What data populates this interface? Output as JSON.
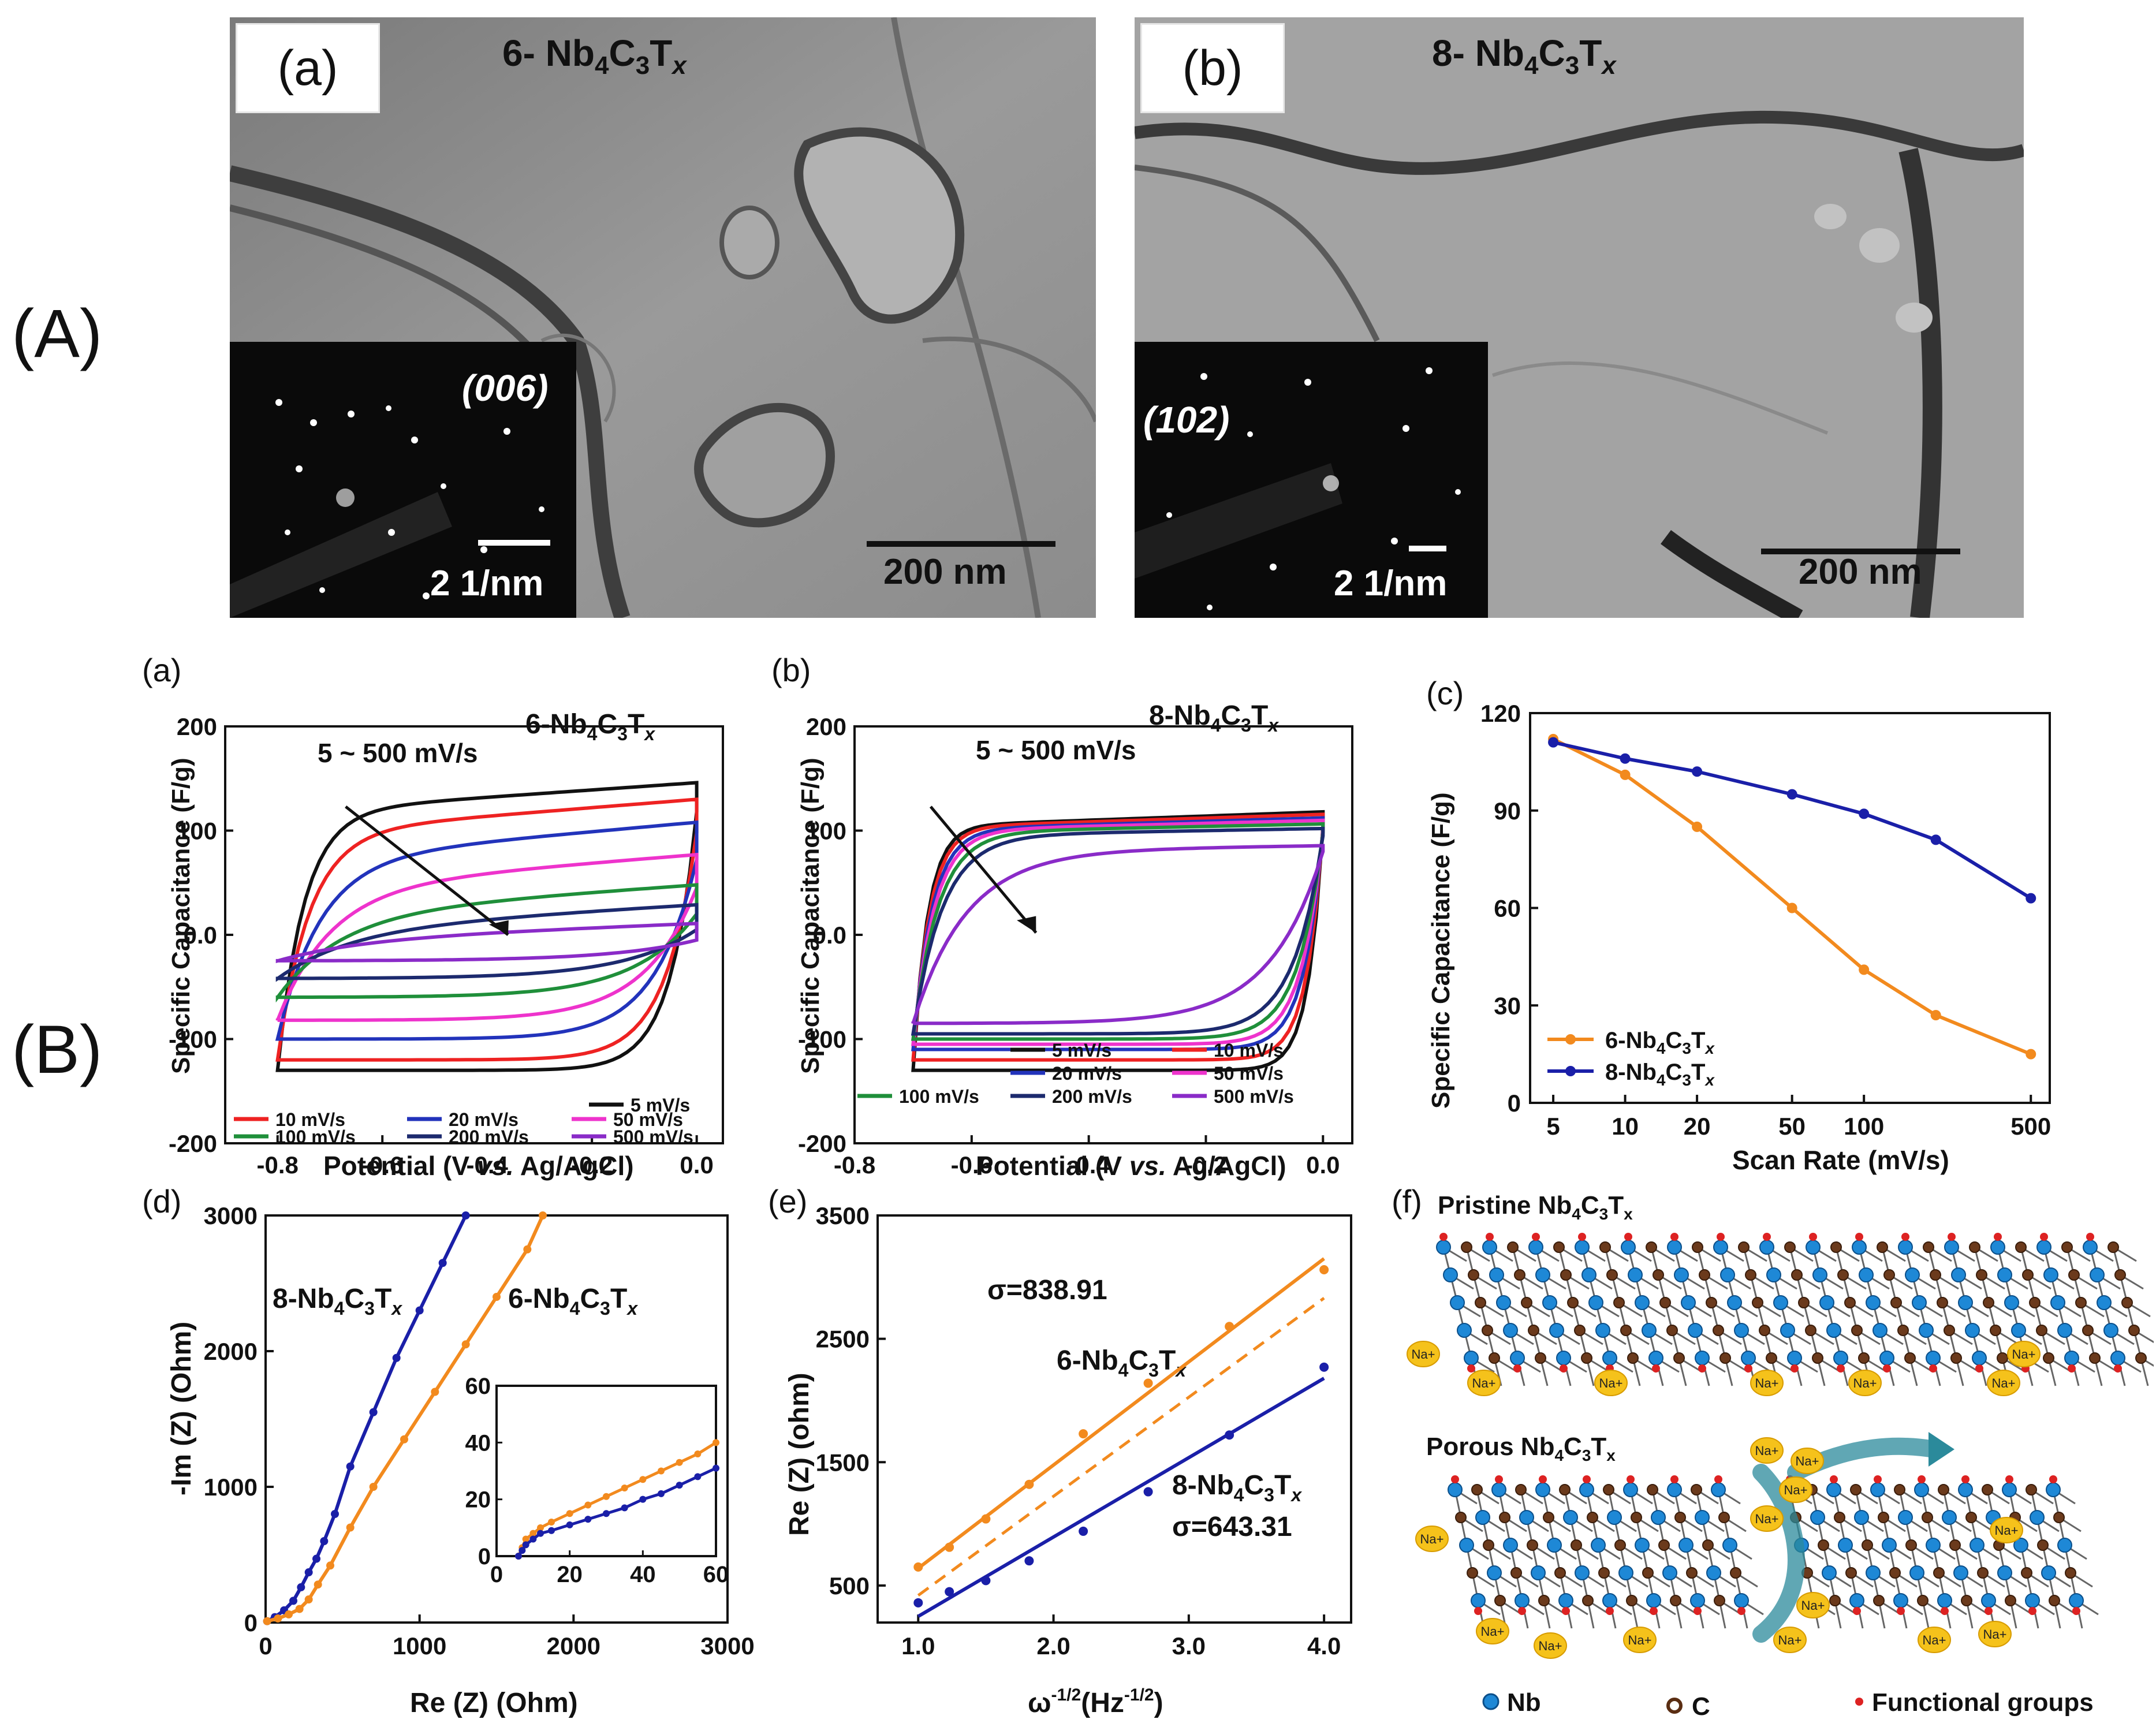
{
  "figure": {
    "part_A_label": "(A)",
    "part_B_label": "(B)"
  },
  "tem": {
    "a": {
      "panel": "(a)",
      "title_prefix": "6- Nb",
      "hkl": "(006)",
      "saed_scale": "2 1/nm",
      "scale": "200 nm"
    },
    "b": {
      "panel": "(b)",
      "title_prefix": "8- Nb",
      "hkl": "(102)",
      "saed_scale": "2 1/nm",
      "scale": "200 nm"
    }
  },
  "colors": {
    "black": "#111111",
    "red": "#ee2222",
    "blue": "#2233bb",
    "magenta": "#ee33cc",
    "green": "#1f8f3a",
    "navy": "#1c2a6e",
    "purple": "#8a2bc8",
    "orange": "#f28a1e",
    "darkblue": "#1a1fa8"
  },
  "chart_data": [
    {
      "id": "cv-6",
      "type": "line",
      "panel_label": "(a)",
      "title": "6-Nb4C3Tx",
      "annotation": "5 ~ 500 mV/s",
      "xlabel": "Potential (V vs. Ag/AgCl)",
      "ylabel": "Specific Capacitance (F/g)",
      "xlim": [
        -0.9,
        0.05
      ],
      "ylim": [
        -200,
        200
      ],
      "xticks": [
        "-0.8",
        "-0.6",
        "-0.4",
        "-0.2",
        "0.0"
      ],
      "yticks": [
        "-200",
        "-100",
        "0.0",
        "100",
        "200"
      ],
      "legend": [
        "5 mV/s",
        "10 mV/s",
        "20 mV/s",
        "50 mV/s",
        "100 mV/s",
        "200 mV/s",
        "500 mV/s"
      ],
      "series": [
        {
          "name": "5 mV/s",
          "top": 118,
          "bottom": -130,
          "color": "#111111"
        },
        {
          "name": "10 mV/s",
          "top": 98,
          "bottom": -120,
          "color": "#ee2222"
        },
        {
          "name": "20 mV/s",
          "top": 72,
          "bottom": -100,
          "color": "#2233bb"
        },
        {
          "name": "50 mV/s",
          "top": 45,
          "bottom": -82,
          "color": "#ee33cc"
        },
        {
          "name": "100 mV/s",
          "top": 20,
          "bottom": -60,
          "color": "#1f8f3a"
        },
        {
          "name": "200 mV/s",
          "top": 5,
          "bottom": -42,
          "color": "#1c2a6e"
        },
        {
          "name": "500 mV/s",
          "top": -5,
          "bottom": -25,
          "color": "#8a2bc8"
        }
      ]
    },
    {
      "id": "cv-8",
      "type": "line",
      "panel_label": "(b)",
      "title": "8-Nb4C3Tx",
      "annotation": "5 ~ 500 mV/s",
      "xlabel": "Potential (V vs. Ag/AgCl)",
      "ylabel": "Specific Capacitance (F/g)",
      "xlim": [
        -0.8,
        0.05
      ],
      "ylim": [
        -200,
        200
      ],
      "xticks": [
        "-0.8",
        "-0.6",
        "-0.4",
        "-0.2",
        "0.0"
      ],
      "yticks": [
        "-200",
        "-100",
        "0.0",
        "100",
        "200"
      ],
      "legend": [
        "5 mV/s",
        "10 mV/s",
        "20 mV/s",
        "50 mV/s",
        "100 mV/s",
        "200 mV/s",
        "500 mV/s"
      ],
      "series": [
        {
          "name": "5 mV/s",
          "top": 104,
          "bottom": -130,
          "color": "#111111"
        },
        {
          "name": "10 mV/s",
          "top": 103,
          "bottom": -120,
          "color": "#ee2222"
        },
        {
          "name": "20 mV/s",
          "top": 101,
          "bottom": -110,
          "color": "#2233bb"
        },
        {
          "name": "50 mV/s",
          "top": 100,
          "bottom": -105,
          "color": "#ee33cc"
        },
        {
          "name": "100 mV/s",
          "top": 98,
          "bottom": -100,
          "color": "#1f8f3a"
        },
        {
          "name": "200 mV/s",
          "top": 95,
          "bottom": -95,
          "color": "#1c2a6e"
        },
        {
          "name": "500 mV/s",
          "top": 80,
          "bottom": -85,
          "color": "#8a2bc8"
        }
      ]
    },
    {
      "id": "rate",
      "type": "line",
      "panel_label": "(c)",
      "xlabel": "Scan Rate (mV/s)",
      "ylabel": "Specific Capacitance (F/g)",
      "xscale": "log",
      "xlim": [
        4,
        600
      ],
      "ylim": [
        0,
        120
      ],
      "xticks": [
        5,
        10,
        20,
        50,
        100,
        500
      ],
      "yticks": [
        0,
        30,
        60,
        90,
        120
      ],
      "legend": "bottom-left",
      "series": [
        {
          "name": "6-Nb4C3Tx",
          "color": "#f28a1e",
          "x": [
            5,
            10,
            20,
            50,
            100,
            200,
            500
          ],
          "y": [
            112,
            101,
            85,
            60,
            41,
            27,
            15
          ]
        },
        {
          "name": "8-Nb4C3Tx",
          "color": "#1a1fa8",
          "x": [
            5,
            10,
            20,
            50,
            100,
            200,
            500
          ],
          "y": [
            111,
            106,
            102,
            95,
            89,
            81,
            63
          ]
        }
      ]
    },
    {
      "id": "nyquist",
      "type": "scatter",
      "panel_label": "(d)",
      "xlabel": "Re (Z) (Ohm)",
      "ylabel": "-Im (Z) (Ohm)",
      "xlim": [
        0,
        3000
      ],
      "ylim": [
        0,
        3000
      ],
      "xticks": [
        0,
        1000,
        2000,
        3000
      ],
      "yticks": [
        0,
        1000,
        2000,
        3000
      ],
      "series": [
        {
          "name": "8-Nb4C3Tx",
          "color": "#1a1fa8",
          "x": [
            10,
            60,
            120,
            180,
            230,
            280,
            330,
            380,
            450,
            550,
            700,
            850,
            1000,
            1150,
            1300
          ],
          "y": [
            10,
            40,
            90,
            160,
            260,
            370,
            470,
            600,
            800,
            1150,
            1550,
            1950,
            2300,
            2650,
            3000
          ]
        },
        {
          "name": "6-Nb4C3Tx",
          "color": "#f28a1e",
          "x": [
            10,
            80,
            150,
            220,
            280,
            340,
            420,
            550,
            700,
            900,
            1100,
            1300,
            1500,
            1700,
            1800
          ],
          "y": [
            10,
            30,
            60,
            100,
            170,
            280,
            420,
            700,
            1000,
            1350,
            1700,
            2050,
            2400,
            2750,
            3000
          ]
        }
      ],
      "inset": {
        "xlim": [
          0,
          60
        ],
        "ylim": [
          0,
          60
        ],
        "xticks": [
          0,
          20,
          40,
          60
        ],
        "yticks": [
          0,
          20,
          40,
          60
        ],
        "series": [
          {
            "name": "6-Nb4C3Tx",
            "color": "#f28a1e",
            "x": [
              6,
              7,
              8,
              10,
              12,
              15,
              20,
              25,
              30,
              35,
              40,
              45,
              50,
              55,
              60
            ],
            "y": [
              0,
              3,
              6,
              8,
              10,
              12,
              15,
              18,
              21,
              24,
              27,
              30,
              33,
              36,
              40
            ]
          },
          {
            "name": "8-Nb4C3Tx",
            "color": "#1a1fa8",
            "x": [
              6,
              7,
              8,
              10,
              12,
              15,
              20,
              25,
              30,
              35,
              40,
              45,
              50,
              55,
              60
            ],
            "y": [
              0,
              2,
              4,
              6,
              8,
              9,
              11,
              13,
              15,
              17,
              20,
              22,
              25,
              28,
              31
            ]
          }
        ]
      }
    },
    {
      "id": "warburg",
      "type": "scatter",
      "panel_label": "(e)",
      "xlabel": "ω-1/2(Hz-1/2)",
      "ylabel": "Re (Z) (ohm)",
      "xlim": [
        0.7,
        4.2
      ],
      "ylim": [
        200,
        3500
      ],
      "xticks": [
        "1.0",
        "2.0",
        "3.0",
        "4.0"
      ],
      "yticks": [
        500,
        1500,
        2500,
        3500
      ],
      "annotations": [
        "σ=838.91",
        "6-Nb4C3Tx",
        "8-Nb4C3Tx",
        "σ=643.31"
      ],
      "series": [
        {
          "name": "6-Nb4C3Tx",
          "color": "#f28a1e",
          "x": [
            1.0,
            1.23,
            1.5,
            1.82,
            2.22,
            2.7,
            3.3,
            4.0
          ],
          "y": [
            650,
            810,
            1040,
            1320,
            1730,
            2140,
            2600,
            3060
          ],
          "fit": [
            [
              1.0,
              640
            ],
            [
              4.0,
              3150
            ]
          ],
          "fit_dashed": [
            [
              1.0,
              420
            ],
            [
              4.0,
              2830
            ]
          ]
        },
        {
          "name": "8-Nb4C3Tx",
          "color": "#1a1fa8",
          "x": [
            1.0,
            1.23,
            1.5,
            1.82,
            2.22,
            2.7,
            3.3,
            4.0
          ],
          "y": [
            360,
            450,
            540,
            700,
            940,
            1260,
            1720,
            2270
          ],
          "fit": [
            [
              1.0,
              250
            ],
            [
              4.0,
              2180
            ]
          ]
        }
      ]
    }
  ],
  "schematic": {
    "panel_label": "(f)",
    "pristine_prefix": "Pristine",
    "porous_prefix": "Porous",
    "formula_main": "Nb",
    "ion": "Na+",
    "legend": {
      "nb": "Nb",
      "c": "C",
      "fg": "Functional groups"
    }
  }
}
